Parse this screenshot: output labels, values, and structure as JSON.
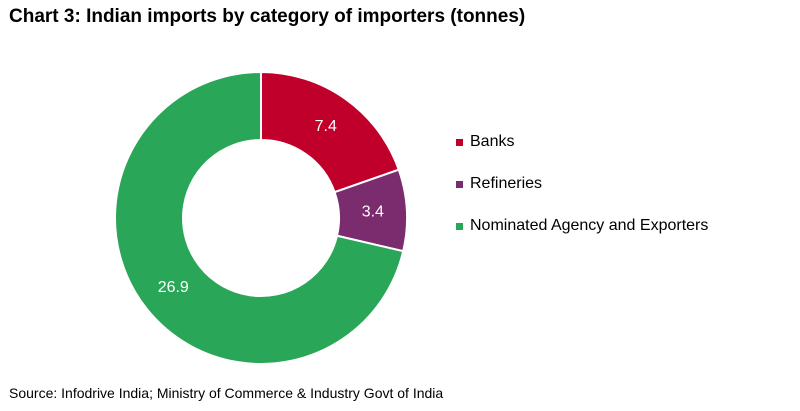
{
  "chart_data": {
    "type": "pie",
    "title": "Chart 3: Indian imports by category of importers (tonnes)",
    "source": "Source: Infodrive India; Ministry of Commerce & Industry Govt of India",
    "categories": [
      "Banks",
      "Refineries",
      "Nominated Agency and Exporters"
    ],
    "values": [
      7.4,
      3.4,
      26.9
    ],
    "data_labels": [
      "7.4",
      "3.4",
      "26.9"
    ],
    "colors": [
      "#c0002a",
      "#7b2c6e",
      "#2aa658"
    ],
    "donut": true,
    "legend_position": "right"
  }
}
